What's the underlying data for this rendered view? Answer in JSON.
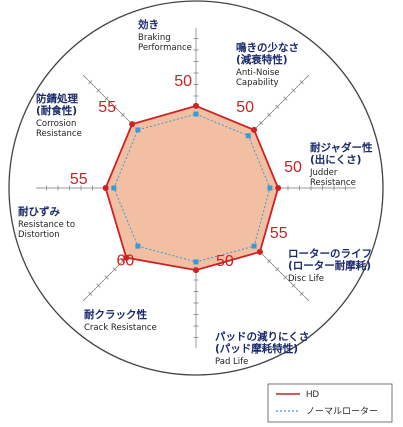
{
  "chart_data": {
    "type": "radar",
    "axes": [
      {
        "jp": [
          "効き"
        ],
        "en": [
          "Braking",
          "Performance"
        ]
      },
      {
        "jp": [
          "鳴きの少なさ",
          "(減衰特性)"
        ],
        "en": [
          "Anti-Noise",
          "Capability"
        ]
      },
      {
        "jp": [
          "耐ジャダー性",
          "(出にくさ)"
        ],
        "en": [
          "Judder",
          "Resistance"
        ]
      },
      {
        "jp": [
          "ローターのライフ",
          "(ローター耐摩耗)"
        ],
        "en": [
          "Disc Life"
        ]
      },
      {
        "jp": [
          "パッドの減りにくさ",
          "(パッド摩耗特性)"
        ],
        "en": [
          "Pad Life"
        ]
      },
      {
        "jp": [
          "耐クラック性"
        ],
        "en": [
          "Crack Resistance"
        ]
      },
      {
        "jp": [
          "耐ひずみ"
        ],
        "en": [
          "Resistance to",
          "Distortion"
        ]
      },
      {
        "jp": [
          "防錆処理",
          "(耐食性)"
        ],
        "en": [
          "Corrosion",
          "Resistance"
        ]
      }
    ],
    "range": [
      0,
      70
    ],
    "series": [
      {
        "name": "HD",
        "values": [
          50,
          50,
          50,
          55,
          50,
          60,
          55,
          55
        ],
        "color": "#cc2222",
        "fill": "#f3bfa3",
        "style": "solid"
      },
      {
        "name": "ノーマルローター",
        "values": [
          45,
          45,
          45,
          50,
          45,
          50,
          50,
          50
        ],
        "color": "#3a9ad8",
        "style": "dashed"
      }
    ],
    "value_labels": [
      "50",
      "50",
      "50",
      "55",
      "50",
      "60",
      "55",
      "55"
    ],
    "grid": true,
    "legend_position": "bottom-right"
  }
}
